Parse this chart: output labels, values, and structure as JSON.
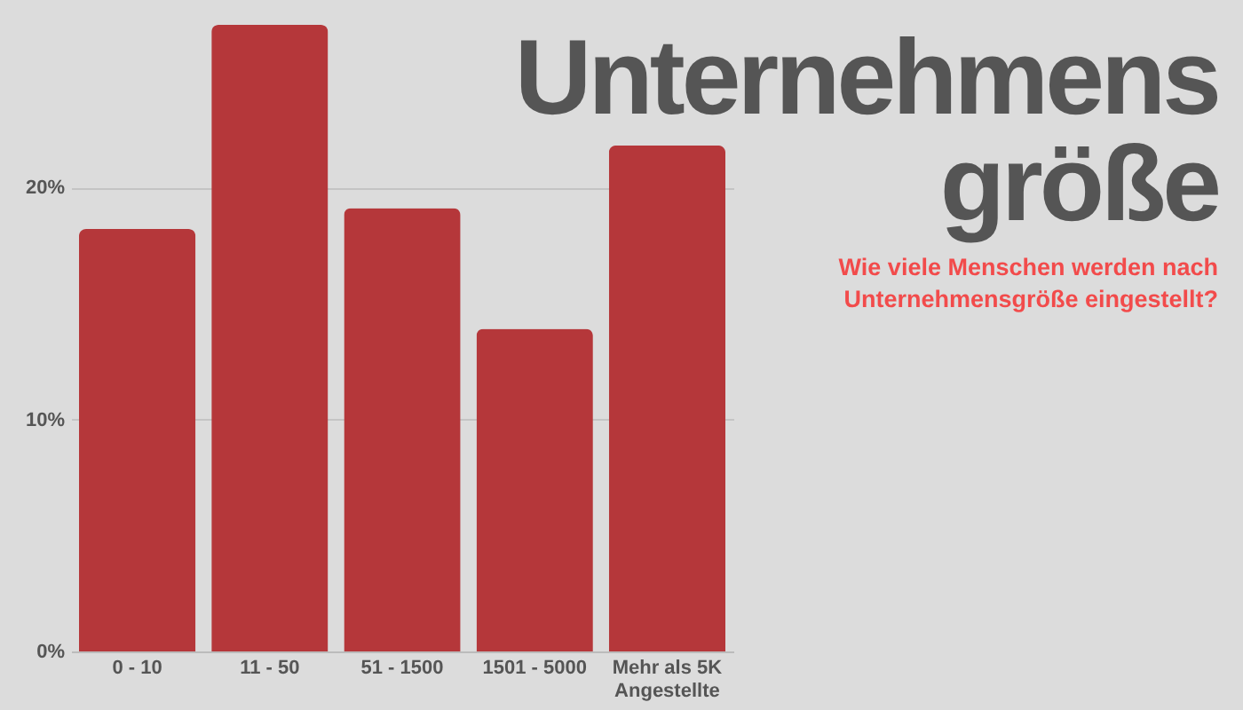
{
  "chart_data": {
    "type": "bar",
    "title": "Unternehmens\ngröße",
    "subtitle": "Wie viele Menschen werden nach\nUnternehmensgröße eingestellt?",
    "categories": [
      "0 - 10",
      "11 - 50",
      "51 - 1500",
      "1501 - 5000",
      "Mehr als 5K\nAngestellte"
    ],
    "values": [
      18.2,
      27.0,
      19.1,
      13.9,
      21.8
    ],
    "color": "#b5373a",
    "yticks": [
      {
        "value": 0,
        "label": "0%"
      },
      {
        "value": 10,
        "label": "10%"
      },
      {
        "value": 20,
        "label": "20%"
      }
    ],
    "ylim": [
      0,
      27
    ],
    "grid": "y"
  }
}
